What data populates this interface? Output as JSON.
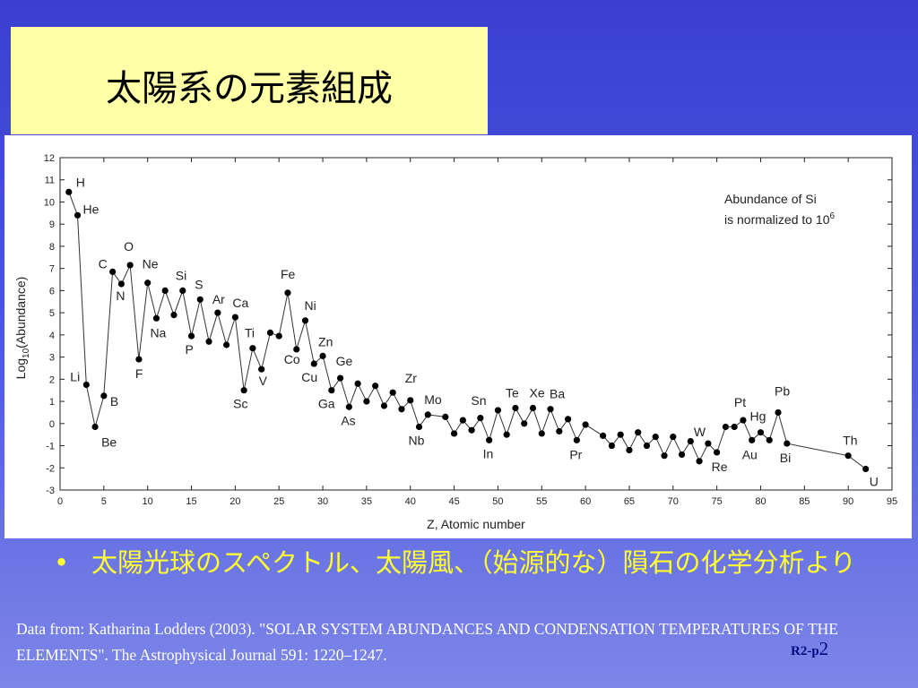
{
  "slide": {
    "title": "太陽系の元素組成",
    "bullet_marker": "•",
    "bullet_text": "太陽光球のスペクトル、太陽風、（始源的な）隕石の化学分析より",
    "citation": "Data from: Katharina Lodders (2003). \"SOLAR SYSTEM ABUNDANCES AND CONDENSATION TEMPERATURES OF THE ELEMENTS\". The Astrophysical Journal 591: 1220–1247.",
    "slide_number_prefix": "R2-p",
    "slide_number_value": "2",
    "colors": {
      "background": "#3a3fd2",
      "title_box": "#ffffa8",
      "bullet_text": "#ffff33",
      "citation_text": "#ffffff"
    }
  },
  "chart_data": {
    "type": "scatter",
    "line": true,
    "xlabel": "Z, Atomic number",
    "ylabel": "Log10(Abundance)",
    "xlim": [
      0,
      95
    ],
    "ylim": [
      -3,
      12
    ],
    "xticks": [
      0,
      5,
      10,
      15,
      20,
      25,
      30,
      35,
      40,
      45,
      50,
      55,
      60,
      65,
      70,
      75,
      80,
      85,
      90,
      95
    ],
    "yticks": [
      -3,
      -2,
      -1,
      0,
      1,
      2,
      3,
      4,
      5,
      6,
      7,
      8,
      9,
      10,
      11,
      12
    ],
    "annotation_line1": "Abundance of Si",
    "annotation_line2": "is normalized to 10",
    "annotation_superscript": "6",
    "points": [
      {
        "z": 1,
        "y": 10.45
      },
      {
        "z": 2,
        "y": 9.4
      },
      {
        "z": 3,
        "y": 1.75
      },
      {
        "z": 4,
        "y": -0.15
      },
      {
        "z": 5,
        "y": 1.25
      },
      {
        "z": 6,
        "y": 6.85
      },
      {
        "z": 7,
        "y": 6.3
      },
      {
        "z": 8,
        "y": 7.15
      },
      {
        "z": 9,
        "y": 2.9
      },
      {
        "z": 10,
        "y": 6.35
      },
      {
        "z": 11,
        "y": 4.75
      },
      {
        "z": 12,
        "y": 6.0
      },
      {
        "z": 13,
        "y": 4.9
      },
      {
        "z": 14,
        "y": 6.0
      },
      {
        "z": 15,
        "y": 3.95
      },
      {
        "z": 16,
        "y": 5.6
      },
      {
        "z": 17,
        "y": 3.7
      },
      {
        "z": 18,
        "y": 5.0
      },
      {
        "z": 19,
        "y": 3.55
      },
      {
        "z": 20,
        "y": 4.8
      },
      {
        "z": 21,
        "y": 1.5
      },
      {
        "z": 22,
        "y": 3.4
      },
      {
        "z": 23,
        "y": 2.45
      },
      {
        "z": 24,
        "y": 4.1
      },
      {
        "z": 25,
        "y": 3.95
      },
      {
        "z": 26,
        "y": 5.9
      },
      {
        "z": 27,
        "y": 3.35
      },
      {
        "z": 28,
        "y": 4.65
      },
      {
        "z": 29,
        "y": 2.7
      },
      {
        "z": 30,
        "y": 3.05
      },
      {
        "z": 31,
        "y": 1.5
      },
      {
        "z": 32,
        "y": 2.05
      },
      {
        "z": 33,
        "y": 0.75
      },
      {
        "z": 34,
        "y": 1.8
      },
      {
        "z": 35,
        "y": 1.0
      },
      {
        "z": 36,
        "y": 1.7
      },
      {
        "z": 37,
        "y": 0.8
      },
      {
        "z": 38,
        "y": 1.4
      },
      {
        "z": 39,
        "y": 0.65
      },
      {
        "z": 40,
        "y": 1.05
      },
      {
        "z": 41,
        "y": -0.15
      },
      {
        "z": 42,
        "y": 0.4
      },
      {
        "z": 44,
        "y": 0.3
      },
      {
        "z": 45,
        "y": -0.45
      },
      {
        "z": 46,
        "y": 0.15
      },
      {
        "z": 47,
        "y": -0.3
      },
      {
        "z": 48,
        "y": 0.25
      },
      {
        "z": 49,
        "y": -0.75
      },
      {
        "z": 50,
        "y": 0.6
      },
      {
        "z": 51,
        "y": -0.5
      },
      {
        "z": 52,
        "y": 0.7
      },
      {
        "z": 53,
        "y": 0.0
      },
      {
        "z": 54,
        "y": 0.7
      },
      {
        "z": 55,
        "y": -0.45
      },
      {
        "z": 56,
        "y": 0.65
      },
      {
        "z": 57,
        "y": -0.35
      },
      {
        "z": 58,
        "y": 0.2
      },
      {
        "z": 59,
        "y": -0.75
      },
      {
        "z": 60,
        "y": -0.05
      },
      {
        "z": 62,
        "y": -0.55
      },
      {
        "z": 63,
        "y": -1.0
      },
      {
        "z": 64,
        "y": -0.5
      },
      {
        "z": 65,
        "y": -1.2
      },
      {
        "z": 66,
        "y": -0.4
      },
      {
        "z": 67,
        "y": -1.0
      },
      {
        "z": 68,
        "y": -0.6
      },
      {
        "z": 69,
        "y": -1.45
      },
      {
        "z": 70,
        "y": -0.6
      },
      {
        "z": 71,
        "y": -1.4
      },
      {
        "z": 72,
        "y": -0.8
      },
      {
        "z": 73,
        "y": -1.7
      },
      {
        "z": 74,
        "y": -0.9
      },
      {
        "z": 75,
        "y": -1.3
      },
      {
        "z": 76,
        "y": -0.15
      },
      {
        "z": 77,
        "y": -0.15
      },
      {
        "z": 78,
        "y": 0.15
      },
      {
        "z": 79,
        "y": -0.75
      },
      {
        "z": 80,
        "y": -0.4
      },
      {
        "z": 81,
        "y": -0.75
      },
      {
        "z": 82,
        "y": 0.5
      },
      {
        "z": 83,
        "y": -0.9
      },
      {
        "z": 90,
        "y": -1.45
      },
      {
        "z": 92,
        "y": -2.05
      }
    ],
    "labels": [
      {
        "text": "H",
        "z": 1,
        "dx": 8,
        "dy": -6
      },
      {
        "text": "He",
        "z": 2,
        "dx": 6,
        "dy": -2
      },
      {
        "text": "Li",
        "z": 3,
        "dx": -18,
        "dy": -4
      },
      {
        "text": "Be",
        "z": 4,
        "dx": 7,
        "dy": 22
      },
      {
        "text": "B",
        "z": 5,
        "dx": 7,
        "dy": 11
      },
      {
        "text": "C",
        "z": 6,
        "dx": -16,
        "dy": -4
      },
      {
        "text": "N",
        "z": 7,
        "dx": -6,
        "dy": 18
      },
      {
        "text": "O",
        "z": 8,
        "dx": -7,
        "dy": -16
      },
      {
        "text": "F",
        "z": 9,
        "dx": -4,
        "dy": 21
      },
      {
        "text": "Ne",
        "z": 10,
        "dx": -6,
        "dy": -16
      },
      {
        "text": "Na",
        "z": 11,
        "dx": -7,
        "dy": 21
      },
      {
        "text": "Si",
        "z": 14,
        "dx": -8,
        "dy": -12
      },
      {
        "text": "P",
        "z": 15,
        "dx": -7,
        "dy": 20
      },
      {
        "text": "S",
        "z": 16,
        "dx": -6,
        "dy": -12
      },
      {
        "text": "Ar",
        "z": 18,
        "dx": -6,
        "dy": -10
      },
      {
        "text": "Ca",
        "z": 20,
        "dx": -3,
        "dy": -11
      },
      {
        "text": "Sc",
        "z": 21,
        "dx": -12,
        "dy": 20
      },
      {
        "text": "Ti",
        "z": 22,
        "dx": -9,
        "dy": -12
      },
      {
        "text": "V",
        "z": 23,
        "dx": -3,
        "dy": 18
      },
      {
        "text": "Fe",
        "z": 26,
        "dx": -8,
        "dy": -16
      },
      {
        "text": "Co",
        "z": 27,
        "dx": -14,
        "dy": 16
      },
      {
        "text": "Ni",
        "z": 28,
        "dx": -1,
        "dy": -12
      },
      {
        "text": "Zn",
        "z": 30,
        "dx": -5,
        "dy": -11
      },
      {
        "text": "Cu",
        "z": 29,
        "dx": -14,
        "dy": 20
      },
      {
        "text": "Ge",
        "z": 32,
        "dx": -5,
        "dy": -14
      },
      {
        "text": "Ga",
        "z": 31,
        "dx": -15,
        "dy": 20
      },
      {
        "text": "As",
        "z": 33,
        "dx": -9,
        "dy": 20
      },
      {
        "text": "Zr",
        "z": 40,
        "dx": -6,
        "dy": -20
      },
      {
        "text": "Nb",
        "z": 41,
        "dx": -12,
        "dy": 20
      },
      {
        "text": "Mo",
        "z": 42,
        "dx": -4,
        "dy": -12
      },
      {
        "text": "Sn",
        "z": 50,
        "dx": -30,
        "dy": -6
      },
      {
        "text": "In",
        "z": 49,
        "dx": -7,
        "dy": 20
      },
      {
        "text": "Te",
        "z": 52,
        "dx": -11,
        "dy": -12
      },
      {
        "text": "Xe",
        "z": 54,
        "dx": -4,
        "dy": -12
      },
      {
        "text": "Ba",
        "z": 56,
        "dx": -1,
        "dy": -12
      },
      {
        "text": "Pr",
        "z": 59,
        "dx": -8,
        "dy": 21
      },
      {
        "text": "W",
        "z": 74,
        "dx": -16,
        "dy": -8
      },
      {
        "text": "Re",
        "z": 75,
        "dx": -6,
        "dy": 21
      },
      {
        "text": "Pt",
        "z": 78,
        "dx": -10,
        "dy": -15
      },
      {
        "text": "Hg",
        "z": 80,
        "dx": -12,
        "dy": -13
      },
      {
        "text": "Au",
        "z": 79,
        "dx": -11,
        "dy": 21
      },
      {
        "text": "Pb",
        "z": 82,
        "dx": -4,
        "dy": -19
      },
      {
        "text": "Bi",
        "z": 83,
        "dx": -8,
        "dy": 21
      },
      {
        "text": "Th",
        "z": 90,
        "dx": -6,
        "dy": -12
      },
      {
        "text": "U",
        "z": 92,
        "dx": 4,
        "dy": 19
      }
    ]
  }
}
